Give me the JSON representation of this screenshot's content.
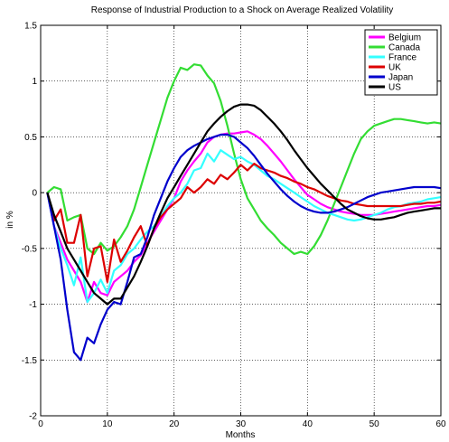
{
  "chart_data": {
    "type": "line",
    "title": "Response of Industrial Production to a Shock on Average Realized Volatility",
    "xlabel": "Months",
    "ylabel": "in %",
    "xlim": [
      0,
      60
    ],
    "ylim": [
      -2,
      1.5
    ],
    "xticks": [
      0,
      10,
      20,
      30,
      40,
      50,
      60
    ],
    "yticks": [
      -2,
      -1.5,
      -1,
      -0.5,
      0,
      0.5,
      1,
      1.5
    ],
    "xtick_labels": [
      "0",
      "10",
      "20",
      "30",
      "40",
      "50",
      "60"
    ],
    "ytick_labels": [
      "-2",
      "-1.5",
      "-1",
      "-0.5",
      "0",
      "0.5",
      "1",
      "1.5"
    ],
    "grid": true,
    "legend_position": "top-right",
    "x": [
      1,
      2,
      3,
      4,
      5,
      6,
      7,
      8,
      9,
      10,
      11,
      12,
      13,
      14,
      15,
      16,
      17,
      18,
      19,
      20,
      21,
      22,
      23,
      24,
      25,
      26,
      27,
      28,
      29,
      30,
      31,
      32,
      33,
      34,
      35,
      36,
      37,
      38,
      39,
      40,
      41,
      42,
      43,
      44,
      45,
      46,
      47,
      48,
      49,
      50,
      51,
      52,
      53,
      54,
      55,
      56,
      57,
      58,
      59,
      60
    ],
    "series": [
      {
        "name": "Belgium",
        "color": "#ff00ff",
        "values": [
          0,
          -0.3,
          -0.45,
          -0.6,
          -0.7,
          -0.8,
          -0.98,
          -0.8,
          -0.9,
          -0.92,
          -0.8,
          -0.75,
          -0.7,
          -0.62,
          -0.56,
          -0.45,
          -0.35,
          -0.25,
          -0.15,
          -0.05,
          0.1,
          0.2,
          0.28,
          0.35,
          0.45,
          0.5,
          0.52,
          0.53,
          0.53,
          0.54,
          0.55,
          0.52,
          0.48,
          0.42,
          0.35,
          0.28,
          0.2,
          0.12,
          0.05,
          -0.02,
          -0.06,
          -0.1,
          -0.13,
          -0.15,
          -0.17,
          -0.18,
          -0.19,
          -0.2,
          -0.2,
          -0.2,
          -0.19,
          -0.18,
          -0.17,
          -0.16,
          -0.15,
          -0.14,
          -0.13,
          -0.12,
          -0.12,
          -0.11
        ]
      },
      {
        "name": "Canada",
        "color": "#33dd33",
        "values": [
          0,
          0.05,
          0.03,
          -0.25,
          -0.22,
          -0.2,
          -0.5,
          -0.55,
          -0.45,
          -0.52,
          -0.48,
          -0.4,
          -0.3,
          -0.15,
          0.05,
          0.25,
          0.45,
          0.65,
          0.85,
          1.0,
          1.12,
          1.1,
          1.15,
          1.14,
          1.05,
          0.98,
          0.82,
          0.6,
          0.35,
          0.12,
          -0.05,
          -0.15,
          -0.25,
          -0.32,
          -0.38,
          -0.45,
          -0.5,
          -0.55,
          -0.53,
          -0.55,
          -0.48,
          -0.38,
          -0.25,
          -0.1,
          0.05,
          0.2,
          0.35,
          0.48,
          0.55,
          0.6,
          0.62,
          0.64,
          0.66,
          0.66,
          0.65,
          0.64,
          0.63,
          0.62,
          0.63,
          0.62
        ]
      },
      {
        "name": "France",
        "color": "#33ffff",
        "values": [
          0,
          -0.3,
          -0.5,
          -0.65,
          -0.83,
          -0.58,
          -0.98,
          -0.9,
          -0.78,
          -0.9,
          -0.7,
          -0.65,
          -0.55,
          -0.5,
          -0.42,
          -0.35,
          -0.3,
          -0.22,
          -0.12,
          -0.05,
          0.0,
          0.08,
          0.2,
          0.22,
          0.35,
          0.28,
          0.38,
          0.34,
          0.3,
          0.32,
          0.28,
          0.25,
          0.2,
          0.15,
          0.12,
          0.08,
          0.04,
          0.0,
          -0.04,
          -0.08,
          -0.12,
          -0.15,
          -0.18,
          -0.2,
          -0.22,
          -0.24,
          -0.25,
          -0.24,
          -0.22,
          -0.2,
          -0.18,
          -0.15,
          -0.13,
          -0.12,
          -0.1,
          -0.09,
          -0.08,
          -0.06,
          -0.05,
          -0.04
        ]
      },
      {
        "name": "UK",
        "color": "#dd0000",
        "values": [
          0,
          -0.25,
          -0.15,
          -0.45,
          -0.45,
          -0.2,
          -0.75,
          -0.5,
          -0.48,
          -0.8,
          -0.42,
          -0.62,
          -0.52,
          -0.4,
          -0.3,
          -0.48,
          -0.32,
          -0.22,
          -0.15,
          -0.1,
          -0.05,
          0.05,
          0.0,
          0.05,
          0.12,
          0.08,
          0.16,
          0.12,
          0.18,
          0.25,
          0.2,
          0.26,
          0.22,
          0.2,
          0.18,
          0.15,
          0.13,
          0.1,
          0.08,
          0.05,
          0.03,
          0.0,
          -0.03,
          -0.05,
          -0.07,
          -0.08,
          -0.1,
          -0.11,
          -0.12,
          -0.12,
          -0.12,
          -0.12,
          -0.12,
          -0.12,
          -0.11,
          -0.1,
          -0.1,
          -0.09,
          -0.09,
          -0.08
        ]
      },
      {
        "name": "Japan",
        "color": "#0000cc",
        "values": [
          0,
          -0.3,
          -0.6,
          -1.05,
          -1.43,
          -1.5,
          -1.3,
          -1.35,
          -1.18,
          -1.05,
          -0.98,
          -1.0,
          -0.8,
          -0.58,
          -0.55,
          -0.4,
          -0.2,
          -0.05,
          0.1,
          0.22,
          0.32,
          0.38,
          0.42,
          0.45,
          0.48,
          0.5,
          0.52,
          0.52,
          0.5,
          0.45,
          0.4,
          0.33,
          0.25,
          0.17,
          0.1,
          0.03,
          -0.03,
          -0.08,
          -0.12,
          -0.15,
          -0.17,
          -0.18,
          -0.18,
          -0.17,
          -0.15,
          -0.13,
          -0.1,
          -0.07,
          -0.04,
          -0.02,
          0.0,
          0.01,
          0.02,
          0.03,
          0.04,
          0.05,
          0.05,
          0.05,
          0.05,
          0.04
        ]
      },
      {
        "name": "US",
        "color": "#000000",
        "values": [
          0,
          -0.2,
          -0.35,
          -0.5,
          -0.6,
          -0.7,
          -0.8,
          -0.9,
          -0.95,
          -1.0,
          -0.95,
          -0.95,
          -0.85,
          -0.75,
          -0.62,
          -0.48,
          -0.32,
          -0.18,
          -0.05,
          0.05,
          0.15,
          0.25,
          0.35,
          0.45,
          0.55,
          0.62,
          0.68,
          0.73,
          0.77,
          0.79,
          0.79,
          0.78,
          0.74,
          0.68,
          0.62,
          0.55,
          0.47,
          0.38,
          0.3,
          0.22,
          0.15,
          0.08,
          0.02,
          -0.04,
          -0.1,
          -0.15,
          -0.18,
          -0.21,
          -0.23,
          -0.24,
          -0.24,
          -0.23,
          -0.22,
          -0.2,
          -0.18,
          -0.17,
          -0.16,
          -0.15,
          -0.14,
          -0.14
        ]
      }
    ]
  }
}
